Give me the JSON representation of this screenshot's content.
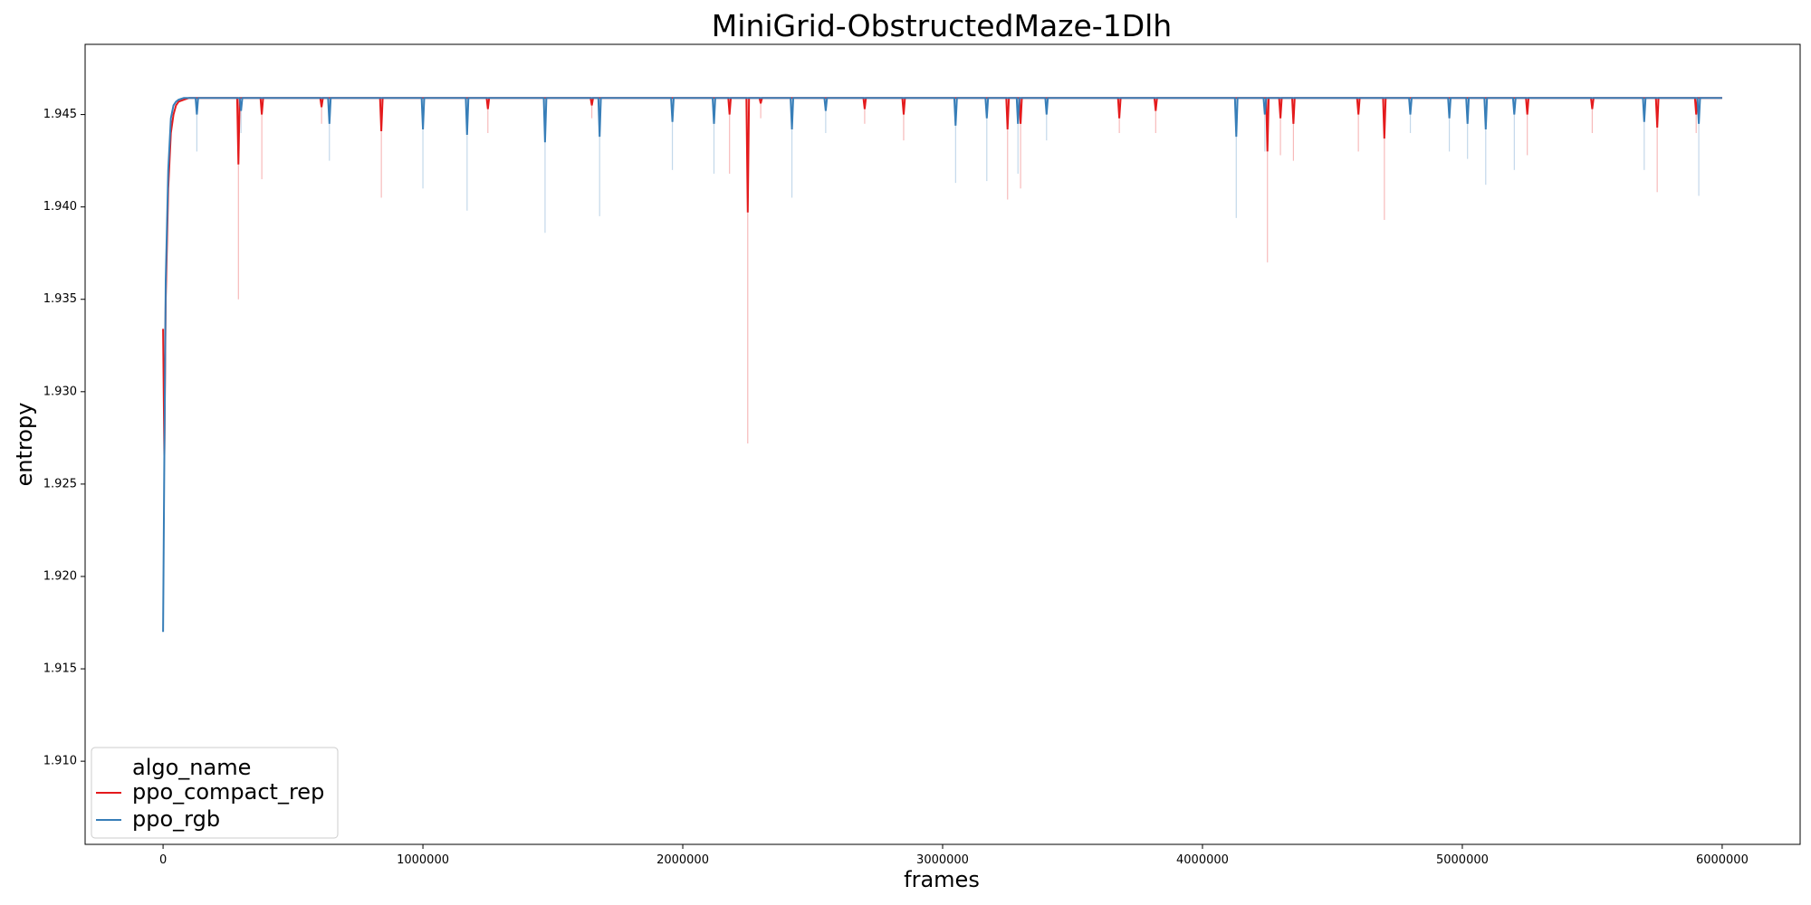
{
  "chart_data": {
    "type": "line",
    "title": "MiniGrid-ObstructedMaze-1Dlh",
    "xlabel": "frames",
    "ylabel": "entropy",
    "xlim": [
      -300000,
      6300000
    ],
    "ylim": [
      1.9055,
      1.9488
    ],
    "x_ticks": [
      0,
      1000000,
      2000000,
      3000000,
      4000000,
      5000000,
      6000000
    ],
    "y_ticks": [
      1.91,
      1.915,
      1.92,
      1.925,
      1.93,
      1.935,
      1.94,
      1.945
    ],
    "x_tick_labels": [
      "0",
      "1000000",
      "2000000",
      "3000000",
      "4000000",
      "5000000",
      "6000000"
    ],
    "y_tick_labels": [
      "1.910",
      "1.915",
      "1.920",
      "1.925",
      "1.930",
      "1.935",
      "1.940",
      "1.945"
    ],
    "grid": false,
    "legend": {
      "title": "algo_name",
      "placement": "lower-left"
    },
    "plateau": 1.9459,
    "series": [
      {
        "name": "ppo_compact_rep",
        "color": "#e41a1c",
        "mean": {
          "x": [
            0,
            5000,
            10000,
            20000,
            30000,
            40000,
            50000,
            60000,
            80000,
            100000,
            6000000
          ],
          "y": [
            1.9334,
            1.9265,
            1.935,
            1.941,
            1.944,
            1.945,
            1.9455,
            1.9457,
            1.9458,
            1.9459,
            1.9459
          ]
        },
        "dips": [
          {
            "x": 290000,
            "mean": 1.9423,
            "band": 1.935
          },
          {
            "x": 380000,
            "mean": 1.945,
            "band": 1.9415
          },
          {
            "x": 610000,
            "mean": 1.9454,
            "band": 1.9445
          },
          {
            "x": 840000,
            "mean": 1.9441,
            "band": 1.9405
          },
          {
            "x": 1250000,
            "mean": 1.9453,
            "band": 1.944
          },
          {
            "x": 1650000,
            "mean": 1.9455,
            "band": 1.9448
          },
          {
            "x": 2180000,
            "mean": 1.945,
            "band": 1.9418
          },
          {
            "x": 2250000,
            "mean": 1.9397,
            "band": 1.9272
          },
          {
            "x": 2300000,
            "mean": 1.9456,
            "band": 1.9448
          },
          {
            "x": 2700000,
            "mean": 1.9453,
            "band": 1.9445
          },
          {
            "x": 2850000,
            "mean": 1.945,
            "band": 1.9436
          },
          {
            "x": 3250000,
            "mean": 1.9442,
            "band": 1.9404
          },
          {
            "x": 3300000,
            "mean": 1.9445,
            "band": 1.941
          },
          {
            "x": 3680000,
            "mean": 1.9448,
            "band": 1.944
          },
          {
            "x": 3820000,
            "mean": 1.9452,
            "band": 1.944
          },
          {
            "x": 4250000,
            "mean": 1.943,
            "band": 1.937
          },
          {
            "x": 4300000,
            "mean": 1.9448,
            "band": 1.9428
          },
          {
            "x": 4350000,
            "mean": 1.9445,
            "band": 1.9425
          },
          {
            "x": 4600000,
            "mean": 1.945,
            "band": 1.943
          },
          {
            "x": 4700000,
            "mean": 1.9437,
            "band": 1.9393
          },
          {
            "x": 5250000,
            "mean": 1.945,
            "band": 1.9428
          },
          {
            "x": 5500000,
            "mean": 1.9453,
            "band": 1.944
          },
          {
            "x": 5750000,
            "mean": 1.9443,
            "band": 1.9408
          },
          {
            "x": 5900000,
            "mean": 1.945,
            "band": 1.944
          }
        ]
      },
      {
        "name": "ppo_rgb",
        "color": "#377eb8",
        "mean": {
          "x": [
            0,
            5000,
            10000,
            20000,
            30000,
            40000,
            50000,
            60000,
            80000,
            100000,
            6000000
          ],
          "y": [
            1.917,
            1.9265,
            1.936,
            1.942,
            1.9448,
            1.9455,
            1.9457,
            1.9458,
            1.9459,
            1.9459,
            1.9459
          ]
        },
        "dips": [
          {
            "x": 130000,
            "mean": 1.945,
            "band": 1.943
          },
          {
            "x": 300000,
            "mean": 1.9452,
            "band": 1.944
          },
          {
            "x": 640000,
            "mean": 1.9445,
            "band": 1.9425
          },
          {
            "x": 1000000,
            "mean": 1.9442,
            "band": 1.941
          },
          {
            "x": 1170000,
            "mean": 1.9439,
            "band": 1.9398
          },
          {
            "x": 1470000,
            "mean": 1.9435,
            "band": 1.9386
          },
          {
            "x": 1680000,
            "mean": 1.9438,
            "band": 1.9395
          },
          {
            "x": 1960000,
            "mean": 1.9446,
            "band": 1.942
          },
          {
            "x": 2120000,
            "mean": 1.9445,
            "band": 1.9418
          },
          {
            "x": 2420000,
            "mean": 1.9442,
            "band": 1.9405
          },
          {
            "x": 2550000,
            "mean": 1.9452,
            "band": 1.944
          },
          {
            "x": 3050000,
            "mean": 1.9444,
            "band": 1.9413
          },
          {
            "x": 3170000,
            "mean": 1.9448,
            "band": 1.9414
          },
          {
            "x": 3290000,
            "mean": 1.9445,
            "band": 1.9418
          },
          {
            "x": 3400000,
            "mean": 1.945,
            "band": 1.9436
          },
          {
            "x": 4130000,
            "mean": 1.9438,
            "band": 1.9394
          },
          {
            "x": 4240000,
            "mean": 1.945,
            "band": 1.943
          },
          {
            "x": 4800000,
            "mean": 1.945,
            "band": 1.944
          },
          {
            "x": 4950000,
            "mean": 1.9448,
            "band": 1.943
          },
          {
            "x": 5020000,
            "mean": 1.9445,
            "band": 1.9426
          },
          {
            "x": 5090000,
            "mean": 1.9442,
            "band": 1.9412
          },
          {
            "x": 5200000,
            "mean": 1.945,
            "band": 1.942
          },
          {
            "x": 5700000,
            "mean": 1.9446,
            "band": 1.942
          },
          {
            "x": 5910000,
            "mean": 1.9445,
            "band": 1.9406
          }
        ]
      }
    ]
  }
}
